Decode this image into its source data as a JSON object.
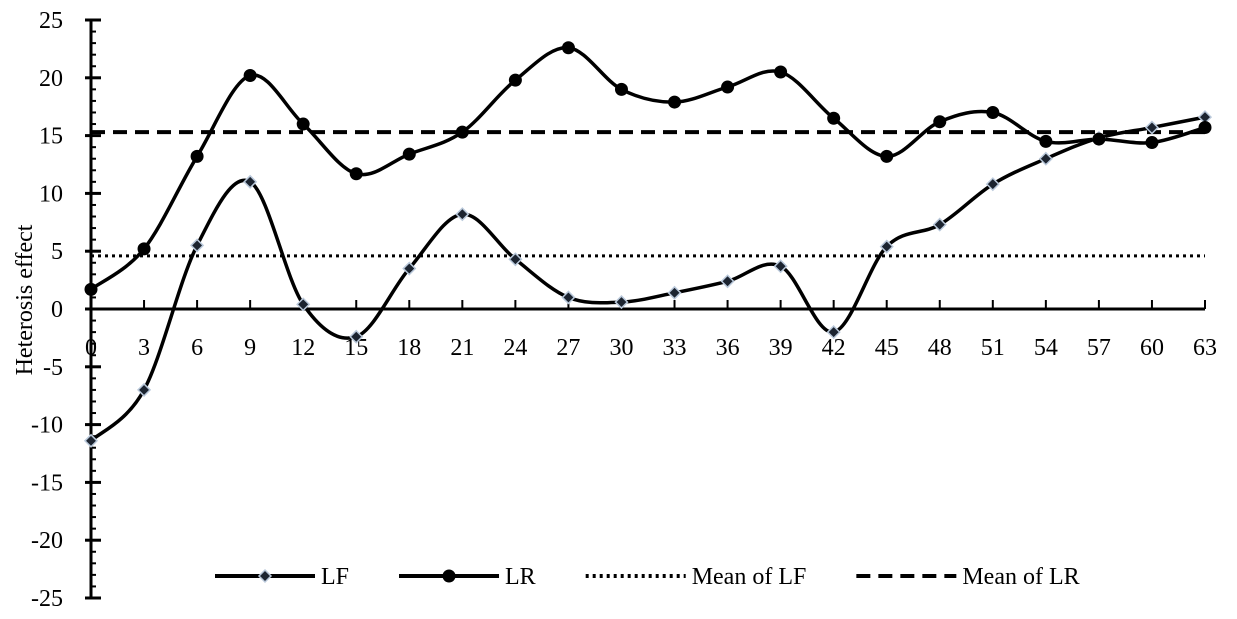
{
  "chart_data": {
    "type": "line",
    "xlabel": "",
    "ylabel": "Heterosis effect",
    "x": [
      0,
      3,
      6,
      9,
      12,
      15,
      18,
      21,
      24,
      27,
      30,
      33,
      36,
      39,
      42,
      45,
      48,
      51,
      54,
      57,
      60,
      63
    ],
    "ylim": [
      -25,
      25
    ],
    "ytick_step": 5,
    "minor_tick_step": 1,
    "grid": false,
    "smooth": true,
    "legend_position": "bottom",
    "series": [
      {
        "name": "LF",
        "marker": "diamond",
        "style": "solid",
        "values": [
          -11.4,
          -7.0,
          5.5,
          11.0,
          0.4,
          -2.4,
          3.5,
          8.2,
          4.3,
          1.0,
          0.6,
          1.4,
          2.4,
          3.7,
          -2.0,
          5.4,
          7.3,
          10.8,
          13.0,
          14.8,
          15.7,
          16.6
        ]
      },
      {
        "name": "LR",
        "marker": "circle",
        "style": "solid",
        "values": [
          1.7,
          5.2,
          13.2,
          20.2,
          16.0,
          11.7,
          13.4,
          15.3,
          19.8,
          22.6,
          19.0,
          17.9,
          19.2,
          20.5,
          16.5,
          13.2,
          16.2,
          17.0,
          14.5,
          14.7,
          14.4,
          15.7
        ]
      },
      {
        "name": "Mean of LF",
        "style": "dotted",
        "constant": 4.6
      },
      {
        "name": "Mean of LR",
        "style": "dashed",
        "constant": 15.3
      }
    ]
  }
}
